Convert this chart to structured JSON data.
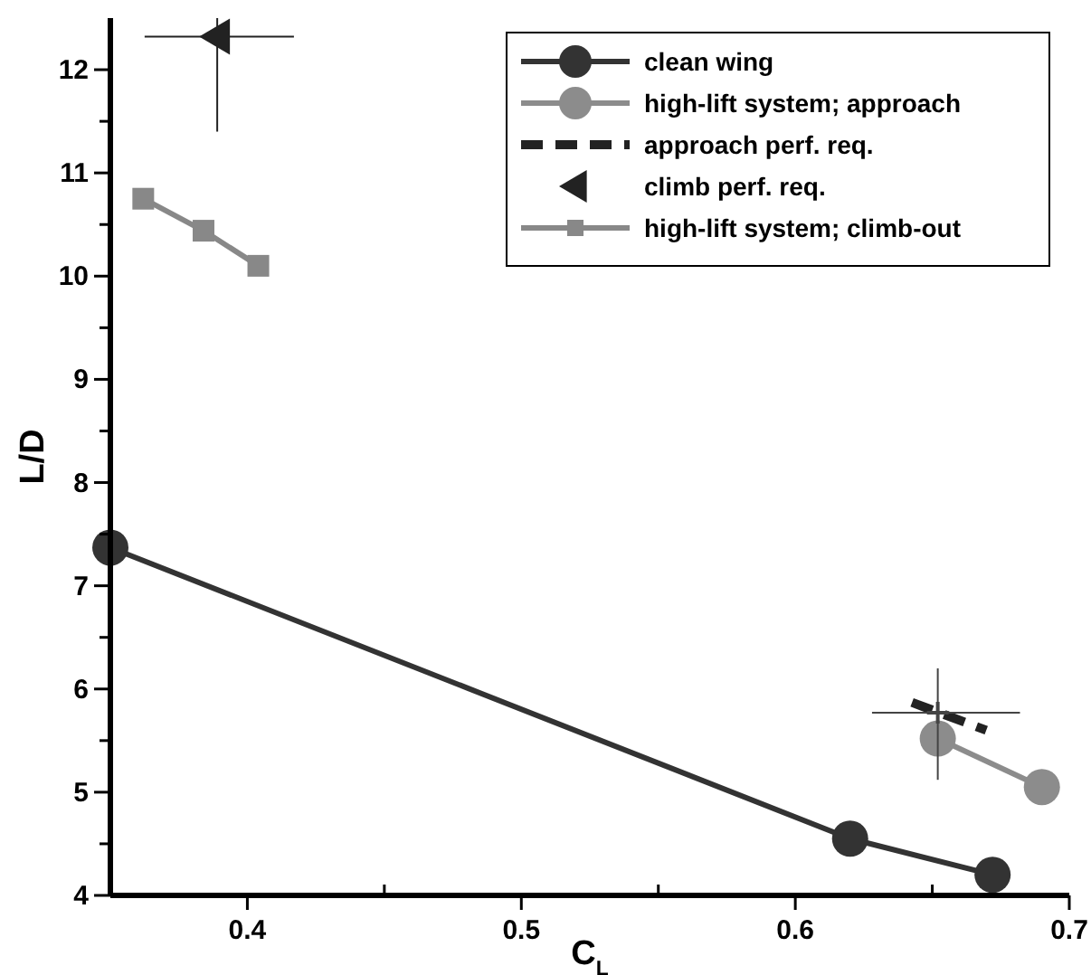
{
  "chart_data": {
    "type": "line",
    "xlabel": "C$_{L}$",
    "ylabel": "L/D",
    "xlim": [
      0.35,
      0.7
    ],
    "xticks": [
      {
        "value": 0.35,
        "label": null
      },
      0.4,
      {
        "value": 0.45,
        "label": null
      },
      0.5,
      {
        "value": 0.55,
        "label": null
      },
      0.6,
      {
        "value": 0.65,
        "label": null
      },
      0.7
    ],
    "ylim": [
      4,
      12.5
    ],
    "yticks": [
      4,
      {
        "value": 4.5,
        "label": null
      },
      5,
      {
        "value": 5.5,
        "label": null
      },
      6,
      {
        "value": 6.5,
        "label": null
      },
      7,
      {
        "value": 7.5,
        "label": null
      },
      8,
      {
        "value": 8.5,
        "label": null
      },
      9,
      {
        "value": 9.5,
        "label": null
      },
      10,
      {
        "value": 10.5,
        "label": null
      },
      11,
      {
        "value": 11.5,
        "label": null
      },
      12
    ],
    "legend": "top right",
    "grid": false,
    "series": [
      {
        "name": "clean wing",
        "color": "#333333",
        "marker": "circle",
        "x": [
          0.35,
          0.62,
          0.672
        ],
        "values": [
          7.37,
          4.55,
          4.2
        ]
      },
      {
        "name": "high-lift system; approach",
        "color": "#8c8c8c",
        "marker": "circle",
        "x": [
          0.652,
          0.69
        ],
        "values": [
          5.52,
          5.05
        ]
      },
      {
        "name": "approach perf. req.",
        "color": "#222222",
        "marker": "none",
        "line_style": "dashed",
        "x": [
          0.6426,
          0.6697
        ],
        "values": [
          5.87,
          5.6
        ]
      },
      {
        "name": "climb perf. req.",
        "type": "scatter",
        "color": "#222222",
        "marker": "triangle",
        "x": [
          0.389
        ],
        "values": [
          12.32
        ],
        "errors": [
          [
            11.4,
            12.5
          ]
        ],
        "xerrors": [
          [
            0.3625,
            0.417
          ]
        ]
      },
      {
        "name": "high-lift system; climb-out",
        "color": "#888888",
        "marker": "square",
        "x": [
          0.362,
          0.384,
          0.404
        ],
        "values": [
          10.75,
          10.44,
          10.1
        ]
      },
      {
        "type": "scatter",
        "color": "#444444",
        "marker": "cross",
        "x": [
          0.652
        ],
        "values": [
          5.77
        ],
        "errors": [
          [
            5.12,
            6.2
          ]
        ],
        "xerrors": [
          [
            0.628,
            0.682
          ]
        ]
      }
    ]
  }
}
